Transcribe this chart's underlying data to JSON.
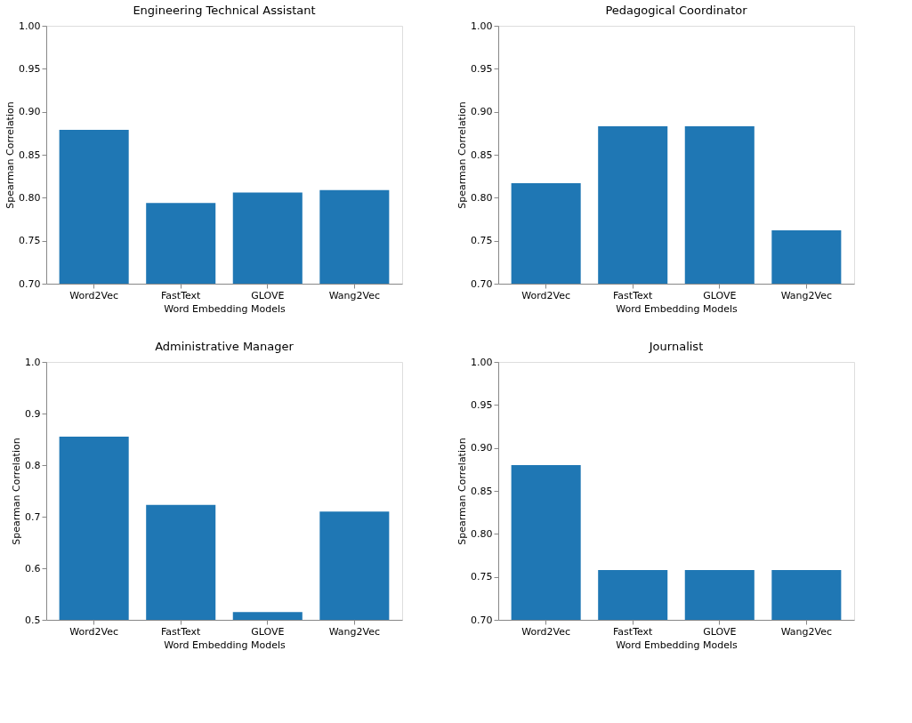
{
  "chart_data": [
    {
      "type": "bar",
      "title": "Engineering Technical Assistant",
      "xlabel": "Word Embedding Models",
      "ylabel": "Spearman Correlation",
      "categories": [
        "Word2Vec",
        "FastText",
        "GLOVE",
        "Wang2Vec"
      ],
      "values": [
        0.879,
        0.794,
        0.806,
        0.809
      ],
      "color": "#1f77b4",
      "ylim": [
        0.7,
        1.0
      ],
      "yticks": [
        {
          "value": 0.7,
          "label": "0.70"
        },
        0.75,
        {
          "value": 0.8,
          "label": "0.80"
        },
        0.85,
        {
          "value": 0.9,
          "label": "0.90"
        },
        0.95,
        {
          "value": 1.0,
          "label": "1.00"
        }
      ]
    },
    {
      "type": "bar",
      "title": "Pedagogical Coordinator",
      "xlabel": "Word Embedding Models",
      "ylabel": "Spearman Correlation",
      "categories": [
        "Word2Vec",
        "FastText",
        "GLOVE",
        "Wang2Vec"
      ],
      "values": [
        0.817,
        0.883,
        0.883,
        0.762
      ],
      "color": "#1f77b4",
      "ylim": [
        0.7,
        1.0
      ],
      "yticks": [
        {
          "value": 0.7,
          "label": "0.70"
        },
        0.75,
        {
          "value": 0.8,
          "label": "0.80"
        },
        0.85,
        {
          "value": 0.9,
          "label": "0.90"
        },
        0.95,
        {
          "value": 1.0,
          "label": "1.00"
        }
      ]
    },
    {
      "type": "bar",
      "title": "Administrative Manager",
      "xlabel": "Word Embedding Models",
      "ylabel": "Spearman Correlation",
      "categories": [
        "Word2Vec",
        "FastText",
        "GLOVE",
        "Wang2Vec"
      ],
      "values": [
        0.855,
        0.723,
        0.515,
        0.71
      ],
      "color": "#1f77b4",
      "ylim": [
        0.5,
        1.0
      ],
      "yticks": [
        0.5,
        0.6,
        0.7,
        0.8,
        0.9,
        {
          "value": 1.0,
          "label": "1.0"
        }
      ]
    },
    {
      "type": "bar",
      "title": "Journalist",
      "xlabel": "Word Embedding Models",
      "ylabel": "Spearman Correlation",
      "categories": [
        "Word2Vec",
        "FastText",
        "GLOVE",
        "Wang2Vec"
      ],
      "values": [
        0.88,
        0.758,
        0.758,
        0.758
      ],
      "color": "#1f77b4",
      "ylim": [
        0.7,
        1.0
      ],
      "yticks": [
        {
          "value": 0.7,
          "label": "0.70"
        },
        0.75,
        {
          "value": 0.8,
          "label": "0.80"
        },
        0.85,
        {
          "value": 0.9,
          "label": "0.90"
        },
        0.95,
        {
          "value": 1.0,
          "label": "1.00"
        }
      ]
    }
  ]
}
